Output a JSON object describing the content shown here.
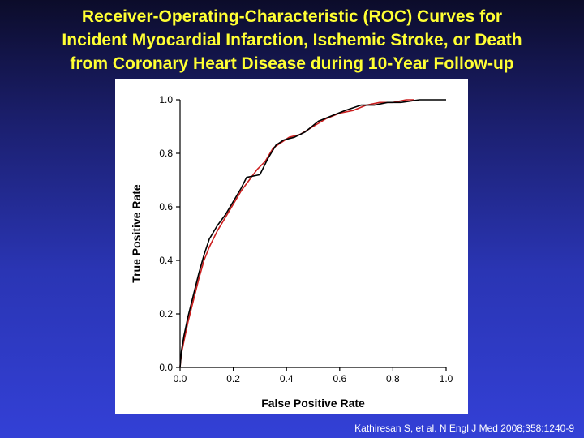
{
  "slide": {
    "title_lines": [
      "Receiver-Operating-Characteristic (ROC) Curves for",
      "Incident Myocardial Infarction, Ischemic Stroke, or Death",
      "from Coronary Heart Disease during 10-Year Follow-up"
    ],
    "citation": "Kathiresan S, et al. N Engl J Med 2008;358:1240-9"
  },
  "colors": {
    "title": "#ffff33",
    "series_black": "#000000",
    "series_red": "#cc1f1f",
    "axis": "#000000",
    "panel": "#ffffff"
  },
  "chart_data": {
    "type": "line",
    "title": "",
    "xlabel": "False Positive Rate",
    "ylabel": "True Positive Rate",
    "xlim": [
      0.0,
      1.0
    ],
    "ylim": [
      0.0,
      1.0
    ],
    "xticks": [
      "0.0",
      "0.2",
      "0.4",
      "0.6",
      "0.8",
      "1.0"
    ],
    "yticks": [
      "0.0",
      "0.2",
      "0.4",
      "0.6",
      "0.8",
      "1.0"
    ],
    "grid": false,
    "legend": "none",
    "series": [
      {
        "color": "#cc1f1f",
        "points": [
          [
            0.0,
            0.0
          ],
          [
            0.005,
            0.05
          ],
          [
            0.015,
            0.1
          ],
          [
            0.03,
            0.17
          ],
          [
            0.05,
            0.25
          ],
          [
            0.07,
            0.33
          ],
          [
            0.09,
            0.4
          ],
          [
            0.11,
            0.45
          ],
          [
            0.14,
            0.51
          ],
          [
            0.17,
            0.56
          ],
          [
            0.2,
            0.61
          ],
          [
            0.23,
            0.66
          ],
          [
            0.26,
            0.7
          ],
          [
            0.29,
            0.74
          ],
          [
            0.32,
            0.77
          ],
          [
            0.35,
            0.82
          ],
          [
            0.38,
            0.84
          ],
          [
            0.41,
            0.86
          ],
          [
            0.45,
            0.87
          ],
          [
            0.5,
            0.9
          ],
          [
            0.55,
            0.93
          ],
          [
            0.6,
            0.95
          ],
          [
            0.65,
            0.96
          ],
          [
            0.7,
            0.98
          ],
          [
            0.75,
            0.99
          ],
          [
            0.8,
            0.99
          ],
          [
            0.85,
            1.0
          ],
          [
            0.88,
            1.0
          ]
        ]
      },
      {
        "color": "#000000",
        "points": [
          [
            0.0,
            0.0
          ],
          [
            0.005,
            0.06
          ],
          [
            0.015,
            0.12
          ],
          [
            0.03,
            0.19
          ],
          [
            0.05,
            0.27
          ],
          [
            0.07,
            0.35
          ],
          [
            0.09,
            0.42
          ],
          [
            0.11,
            0.48
          ],
          [
            0.14,
            0.53
          ],
          [
            0.17,
            0.57
          ],
          [
            0.2,
            0.62
          ],
          [
            0.23,
            0.67
          ],
          [
            0.25,
            0.71
          ],
          [
            0.3,
            0.72
          ],
          [
            0.33,
            0.78
          ],
          [
            0.36,
            0.83
          ],
          [
            0.39,
            0.85
          ],
          [
            0.43,
            0.86
          ],
          [
            0.47,
            0.88
          ],
          [
            0.52,
            0.92
          ],
          [
            0.57,
            0.94
          ],
          [
            0.62,
            0.96
          ],
          [
            0.68,
            0.98
          ],
          [
            0.73,
            0.98
          ],
          [
            0.78,
            0.99
          ],
          [
            0.83,
            0.99
          ],
          [
            0.9,
            1.0
          ],
          [
            1.0,
            1.0
          ]
        ]
      }
    ]
  }
}
